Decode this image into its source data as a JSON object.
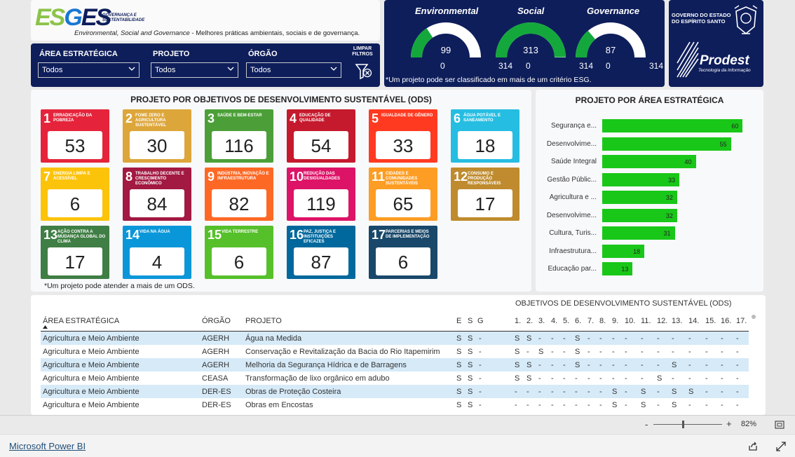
{
  "header": {
    "logo_part1": "ES",
    "logo_part2": "G",
    "logo_part3": "ES",
    "logo_tag1": "GOVERNANÇA E",
    "logo_tag2": "SUSTENTABILIDADE",
    "desc_italic": "Environmental, Social and Governance",
    "desc_rest": " - Melhores práticas ambientais, sociais e de governança."
  },
  "filters": {
    "area_label": "ÁREA ESTRATÉGICA",
    "area_value": "Todos",
    "projeto_label": "PROJETO",
    "projeto_value": "Todos",
    "orgao_label": "ÓRGÃO",
    "orgao_value": "Todos",
    "clear_label_1": "LIMPAR",
    "clear_label_2": "FILTROS"
  },
  "gauges": {
    "items": [
      {
        "title": "Environmental",
        "value": "99",
        "min": "0",
        "max": "314"
      },
      {
        "title": "Social",
        "value": "313",
        "min": "0",
        "max": "314"
      },
      {
        "title": "Governance",
        "value": "87",
        "min": "0",
        "max": "314"
      }
    ],
    "fractions": [
      0.315,
      0.997,
      0.277
    ],
    "note": "*Um projeto pode ser classificado em mais de um critério ESG.",
    "color_fill": "#14a83c",
    "color_track": "#ffffff"
  },
  "gov": {
    "line1": "GOVERNO DO ESTADO",
    "line2": "DO ESPÍRITO SANTO",
    "prodest": "Prodest",
    "prodest_sub": "Tecnologia da Informação"
  },
  "ods": {
    "title": "PROJETO POR OBJETIVOS DE DESENVOLVIMENTO SUSTENTÁVEL (ODS)",
    "note": "*Um projeto pode atender a mais de um ODS.",
    "tiles": [
      {
        "n": "1",
        "label": "ERRADICAÇÃO DA POBREZA",
        "value": "53",
        "color": "#e5243b"
      },
      {
        "n": "2",
        "label": "FOME ZERO E AGRICULTURA SUSTENTÁVEL",
        "value": "30",
        "color": "#dda63a"
      },
      {
        "n": "3",
        "label": "SAÚDE E BEM-ESTAR",
        "value": "116",
        "color": "#4c9f38"
      },
      {
        "n": "4",
        "label": "EDUCAÇÃO DE QUALIDADE",
        "value": "54",
        "color": "#c5192d"
      },
      {
        "n": "5",
        "label": "IGUALDADE DE GÊNERO",
        "value": "33",
        "color": "#ff3a21"
      },
      {
        "n": "6",
        "label": "ÁGUA POTÁVEL E SANEAMENTO",
        "value": "18",
        "color": "#26bde2"
      },
      {
        "n": "7",
        "label": "ENERGIA LIMPA E ACESSÍVEL",
        "value": "6",
        "color": "#fcc30b"
      },
      {
        "n": "8",
        "label": "TRABALHO DECENTE E CRESCIMENTO ECONÔMICO",
        "value": "84",
        "color": "#a21942"
      },
      {
        "n": "9",
        "label": "INDÚSTRIA, INOVAÇÃO E INFRAESTRUTURA",
        "value": "82",
        "color": "#fd6925"
      },
      {
        "n": "10",
        "label": "REDUÇÃO DAS DESIGUALDADES",
        "value": "119",
        "color": "#dd1367"
      },
      {
        "n": "11",
        "label": "CIDADES E COMUNIDADES SUSTENTÁVEIS",
        "value": "65",
        "color": "#fd9d24"
      },
      {
        "n": "12",
        "label": "CONSUMO E PRODUÇÃO RESPONSÁVEIS",
        "value": "17",
        "color": "#bf8b2e"
      },
      {
        "n": "13",
        "label": "AÇÃO CONTRA A MUDANÇA GLOBAL DO CLIMA",
        "value": "17",
        "color": "#3f7e44"
      },
      {
        "n": "14",
        "label": "VIDA NA ÁGUA",
        "value": "4",
        "color": "#0a97d9"
      },
      {
        "n": "15",
        "label": "VIDA TERRESTRE",
        "value": "6",
        "color": "#56c02b"
      },
      {
        "n": "16",
        "label": "PAZ, JUSTIÇA E INSTITUIÇÕES EFICAZES",
        "value": "87",
        "color": "#00689d"
      },
      {
        "n": "17",
        "label": "PARCERIAS E MEIOS DE IMPLEMENTAÇÃO",
        "value": "6",
        "color": "#19486a"
      }
    ]
  },
  "chart_data": {
    "type": "bar",
    "orientation": "horizontal",
    "title": "PROJETO POR ÁREA ESTRATÉGICA",
    "categories": [
      "Segurança e...",
      "Desenvolvime...",
      "Saúde Integral",
      "Gestão Públic...",
      "Agricultura e ...",
      "Desenvolvime...",
      "Cultura, Turis...",
      "Infraestrutura...",
      "Educação par..."
    ],
    "values": [
      60,
      55,
      40,
      33,
      32,
      32,
      31,
      18,
      13
    ],
    "xlim": [
      0,
      62
    ],
    "grid": false,
    "color": "#19c719"
  },
  "table": {
    "ods_header": "OBJETIVOS DE DESENVOLVIMENTO SUSTENTÁVEL (ODS)",
    "col_area": "ÁREA ESTRATÉGICA",
    "col_orgao": "ÓRGÃO",
    "col_projeto": "PROJETO",
    "col_e": "E",
    "col_s": "S",
    "col_g": "G",
    "ods_cols": [
      "1.",
      "2.",
      "3.",
      "4.",
      "5.",
      "6.",
      "7.",
      "8.",
      "9.",
      "10.",
      "11.",
      "12.",
      "13.",
      "14.",
      "15.",
      "16.",
      "17."
    ],
    "rows": [
      {
        "area": "Agricultura e Meio Ambiente",
        "orgao": "AGERH",
        "projeto": "Água na Medida",
        "esg": [
          "S",
          "S",
          "-"
        ],
        "ods": [
          "S",
          "S",
          "-",
          "-",
          "-",
          "S",
          "-",
          "-",
          "-",
          "-",
          "-",
          "-",
          "-",
          "-",
          "-",
          "-",
          "-"
        ]
      },
      {
        "area": "Agricultura e Meio Ambiente",
        "orgao": "AGERH",
        "projeto": "Conservação e Revitalização da Bacia do Rio Itapemirim",
        "esg": [
          "S",
          "S",
          "-"
        ],
        "ods": [
          "S",
          "-",
          "S",
          "-",
          "-",
          "S",
          "-",
          "-",
          "-",
          "-",
          "-",
          "-",
          "-",
          "-",
          "-",
          "-",
          "-"
        ]
      },
      {
        "area": "Agricultura e Meio Ambiente",
        "orgao": "AGERH",
        "projeto": "Melhoria da Segurança Hídrica e de Barragens",
        "esg": [
          "S",
          "S",
          "-"
        ],
        "ods": [
          "S",
          "S",
          "-",
          "-",
          "-",
          "S",
          "-",
          "-",
          "-",
          "-",
          "-",
          "-",
          "S",
          "-",
          "-",
          "-",
          "-"
        ]
      },
      {
        "area": "Agricultura e Meio Ambiente",
        "orgao": "CEASA",
        "projeto": "Transformação de lixo orgânico em adubo",
        "esg": [
          "S",
          "S",
          "-"
        ],
        "ods": [
          "S",
          "S",
          "-",
          "-",
          "-",
          "-",
          "-",
          "-",
          "-",
          "-",
          "-",
          "S",
          "-",
          "-",
          "-",
          "-",
          "-"
        ]
      },
      {
        "area": "Agricultura e Meio Ambiente",
        "orgao": "DER-ES",
        "projeto": "Obras de Proteção Costeira",
        "esg": [
          "S",
          "S",
          "-"
        ],
        "ods": [
          "-",
          "-",
          "-",
          "-",
          "-",
          "-",
          "-",
          "-",
          "S",
          "-",
          "S",
          "-",
          "S",
          "S",
          "-",
          "-",
          "-"
        ]
      },
      {
        "area": "Agricultura e Meio Ambiente",
        "orgao": "DER-ES",
        "projeto": "Obras em Encostas",
        "esg": [
          "S",
          "S",
          "-"
        ],
        "ods": [
          "-",
          "-",
          "-",
          "-",
          "-",
          "-",
          "-",
          "-",
          "S",
          "-",
          "S",
          "-",
          "S",
          "-",
          "-",
          "-",
          "-"
        ]
      }
    ]
  },
  "zoom": {
    "minus": "-",
    "plus": "+",
    "level": "82%"
  },
  "footer": {
    "link": "Microsoft Power BI"
  }
}
